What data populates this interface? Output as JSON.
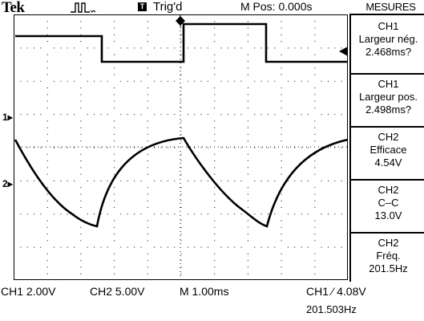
{
  "header": {
    "brand": "Tek",
    "trigger_status": "Trig'd",
    "main_position": "M Pos: 0.000s",
    "menu_title": "MESURES"
  },
  "measures": [
    {
      "channel": "CH1",
      "label": "Largeur nég.",
      "value": "2.468ms?"
    },
    {
      "channel": "CH1",
      "label": "Largeur pos.",
      "value": "2.498ms?"
    },
    {
      "channel": "CH2",
      "label": "Efficace",
      "value": "4.54V"
    },
    {
      "channel": "CH2",
      "label": "C–C",
      "value": "13.0V"
    },
    {
      "channel": "CH2",
      "label": "Fréq.",
      "value": "201.5Hz"
    }
  ],
  "footer": {
    "ch1_scale": "CH1  2.00V",
    "ch2_scale": "CH2  5.00V",
    "timebase": "M 1.00ms",
    "trigger_level": "CH1  ⁄  4.08V",
    "frequency": "201.503Hz"
  },
  "markers": {
    "ch1": "1",
    "ch2": "2"
  }
}
